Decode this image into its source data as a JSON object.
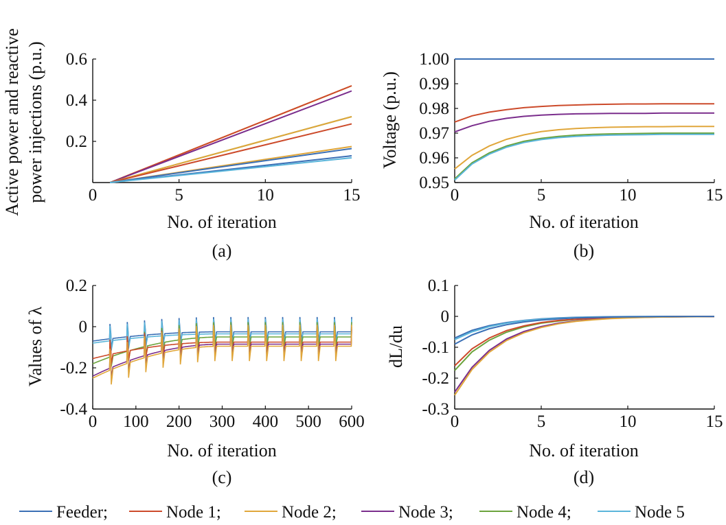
{
  "colors": {
    "feeder": "#3a6fb5",
    "node1": "#cc4a2a",
    "node2": "#e0a63a",
    "node3": "#7a2d8c",
    "node4": "#6ba33c",
    "node5": "#5ab5da"
  },
  "legend": {
    "items": [
      {
        "label": "Feeder;",
        "color": "#3a6fb5"
      },
      {
        "label": "Node 1;",
        "color": "#cc4a2a"
      },
      {
        "label": "Node 2;",
        "color": "#e0a63a"
      },
      {
        "label": "Node 3;",
        "color": "#7a2d8c"
      },
      {
        "label": "Node 4;",
        "color": "#6ba33c"
      },
      {
        "label": "Node 5",
        "color": "#5ab5da"
      }
    ]
  },
  "chart_data": [
    {
      "id": "a",
      "type": "line",
      "caption": "(a)",
      "xlabel": "No. of iteration",
      "ylabel_lines": [
        "Active power and reactive",
        "power injections (p.u.)"
      ],
      "xlim": [
        0,
        15
      ],
      "ylim": [
        0,
        0.6
      ],
      "xticks": [
        0,
        5,
        10,
        15
      ],
      "xtick_labels": [
        "0",
        "5",
        "10",
        "15"
      ],
      "yticks": [
        0.2,
        0.4,
        0.6
      ],
      "ytick_labels": [
        "0.2",
        "0.4",
        "0.6"
      ],
      "x": [
        1,
        15
      ],
      "series": [
        {
          "color": "#e0a63a",
          "values": [
            0,
            0.47
          ]
        },
        {
          "color": "#cc4a2a",
          "values": [
            0,
            0.47
          ]
        },
        {
          "color": "#7a2d8c",
          "values": [
            0,
            0.445
          ]
        },
        {
          "color": "#6ba33c",
          "values": [
            0,
            0.32
          ]
        },
        {
          "color": "#e0a63a",
          "values": [
            0,
            0.32
          ]
        },
        {
          "color": "#cc4a2a",
          "values": [
            0,
            0.285
          ]
        },
        {
          "color": "#e0a63a",
          "values": [
            0,
            0.175
          ]
        },
        {
          "color": "#3a6fb5",
          "values": [
            0,
            0.165
          ]
        },
        {
          "color": "#3a6fb5",
          "values": [
            0,
            0.13
          ]
        },
        {
          "color": "#5ab5da",
          "values": [
            0,
            0.12
          ]
        }
      ]
    },
    {
      "id": "b",
      "type": "line",
      "caption": "(b)",
      "xlabel": "No. of iteration",
      "ylabel_lines": [
        "Voltage (p.u.)"
      ],
      "xlim": [
        0,
        15
      ],
      "ylim": [
        0.95,
        1.0
      ],
      "xticks": [
        0,
        5,
        10,
        15
      ],
      "xtick_labels": [
        "0",
        "5",
        "10",
        "15"
      ],
      "yticks": [
        0.95,
        0.96,
        0.97,
        0.98,
        0.99,
        1.0
      ],
      "ytick_labels": [
        "0.95",
        "0.96",
        "0.97",
        "0.98",
        "0.99",
        "1.00"
      ],
      "x": [
        0,
        1,
        2,
        3,
        4,
        5,
        6,
        7,
        8,
        9,
        10,
        11,
        12,
        13,
        14,
        15
      ],
      "series": [
        {
          "name": "Feeder",
          "color": "#3a6fb5",
          "values": [
            1.0,
            1.0,
            1.0,
            1.0,
            1.0,
            1.0,
            1.0,
            1.0,
            1.0,
            1.0,
            1.0,
            1.0,
            1.0,
            1.0,
            1.0,
            1.0
          ]
        },
        {
          "name": "Node 1",
          "color": "#cc4a2a",
          "values": [
            0.9745,
            0.977,
            0.9785,
            0.9795,
            0.9803,
            0.9808,
            0.9812,
            0.9814,
            0.9816,
            0.9817,
            0.9818,
            0.9818,
            0.9819,
            0.9819,
            0.9819,
            0.9819
          ]
        },
        {
          "name": "Node 3",
          "color": "#7a2d8c",
          "values": [
            0.9705,
            0.973,
            0.9748,
            0.976,
            0.9768,
            0.9773,
            0.9776,
            0.9778,
            0.9779,
            0.978,
            0.978,
            0.978,
            0.9781,
            0.9781,
            0.9781,
            0.9781
          ]
        },
        {
          "name": "Node 2",
          "color": "#e0a63a",
          "values": [
            0.9555,
            0.961,
            0.9648,
            0.9675,
            0.9693,
            0.9706,
            0.9714,
            0.9719,
            0.9722,
            0.9724,
            0.9725,
            0.9726,
            0.9726,
            0.9727,
            0.9727,
            0.9727
          ]
        },
        {
          "name": "Node 4",
          "color": "#6ba33c",
          "values": [
            0.9515,
            0.958,
            0.962,
            0.9648,
            0.9667,
            0.9679,
            0.9687,
            0.9692,
            0.9695,
            0.9697,
            0.9698,
            0.9699,
            0.97,
            0.97,
            0.97,
            0.97
          ]
        },
        {
          "name": "Node 5",
          "color": "#5ab5da",
          "values": [
            0.951,
            0.9575,
            0.9615,
            0.9643,
            0.9662,
            0.9674,
            0.9682,
            0.9687,
            0.969,
            0.9692,
            0.9693,
            0.9694,
            0.9695,
            0.9695,
            0.9695,
            0.9695
          ]
        }
      ]
    },
    {
      "id": "c",
      "type": "line",
      "caption": "(c)",
      "xlabel": "No. of iteration",
      "ylabel_lines": [
        "Values of λ"
      ],
      "xlim": [
        0,
        600
      ],
      "ylim": [
        -0.4,
        0.2
      ],
      "xticks": [
        0,
        100,
        200,
        300,
        400,
        500,
        600
      ],
      "xtick_labels": [
        "0",
        "100",
        "200",
        "300",
        "400",
        "500",
        "600"
      ],
      "yticks": [
        -0.4,
        -0.2,
        0,
        0.2
      ],
      "ytick_labels": [
        "-0.4",
        "-0.2",
        "0",
        "0.2"
      ],
      "spike_period": 40,
      "spike_start": 40,
      "series": [
        {
          "name": "Feeder",
          "color": "#3a6fb5",
          "start": -0.07,
          "end": -0.025
        },
        {
          "name": "Node 5",
          "color": "#5ab5da",
          "start": -0.08,
          "end": -0.035
        },
        {
          "name": "Node 4",
          "color": "#6ba33c",
          "start": -0.18,
          "end": -0.05
        },
        {
          "name": "Node 1",
          "color": "#cc4a2a",
          "start": -0.155,
          "end": -0.075
        },
        {
          "name": "Node 3",
          "color": "#7a2d8c",
          "start": -0.24,
          "end": -0.085
        },
        {
          "name": "Node 2",
          "color": "#e0a63a",
          "start": -0.25,
          "end": -0.095
        }
      ]
    },
    {
      "id": "d",
      "type": "line",
      "caption": "(d)",
      "xlabel": "No. of iteration",
      "ylabel_lines": [
        "dL/du"
      ],
      "xlim": [
        0,
        15
      ],
      "ylim": [
        -0.3,
        0.1
      ],
      "xticks": [
        0,
        5,
        10,
        15
      ],
      "xtick_labels": [
        "0",
        "5",
        "10",
        "15"
      ],
      "yticks": [
        -0.3,
        -0.2,
        -0.1,
        0,
        0.1
      ],
      "ytick_labels": [
        "-0.3",
        "-0.2",
        "-0.1",
        "0",
        "0.1"
      ],
      "x": [
        0,
        1,
        2,
        3,
        4,
        5,
        6,
        7,
        8,
        9,
        10,
        11,
        12,
        13,
        14,
        15
      ],
      "series": [
        {
          "name": "Feeder",
          "color": "#3a6fb5",
          "values": [
            -0.07,
            -0.045,
            -0.03,
            -0.02,
            -0.013,
            -0.008,
            -0.005,
            -0.003,
            -0.002,
            -0.001,
            -0.0007,
            -0.0004,
            -0.0003,
            -0.0002,
            -0.0001,
            0
          ]
        },
        {
          "name": "Node 5",
          "color": "#5ab5da",
          "values": [
            -0.075,
            -0.05,
            -0.033,
            -0.022,
            -0.014,
            -0.009,
            -0.006,
            -0.004,
            -0.0025,
            -0.0015,
            -0.001,
            -0.0006,
            -0.0004,
            -0.0002,
            -0.0001,
            0
          ]
        },
        {
          "name": "Node 4",
          "color": "#6ba33c",
          "values": [
            -0.175,
            -0.115,
            -0.077,
            -0.051,
            -0.034,
            -0.022,
            -0.015,
            -0.01,
            -0.0065,
            -0.0043,
            -0.0028,
            -0.0019,
            -0.0012,
            -0.0008,
            -0.0005,
            -0.0003
          ]
        },
        {
          "name": "Node 1",
          "color": "#cc4a2a",
          "values": [
            -0.16,
            -0.105,
            -0.07,
            -0.046,
            -0.031,
            -0.02,
            -0.013,
            -0.009,
            -0.006,
            -0.004,
            -0.0026,
            -0.0017,
            -0.0011,
            -0.0007,
            -0.0005,
            -0.0003
          ]
        },
        {
          "name": "Node 3",
          "color": "#7a2d8c",
          "values": [
            -0.245,
            -0.165,
            -0.11,
            -0.073,
            -0.049,
            -0.033,
            -0.022,
            -0.015,
            -0.01,
            -0.0065,
            -0.0043,
            -0.0029,
            -0.0019,
            -0.0013,
            -0.0008,
            -0.0005
          ]
        },
        {
          "name": "Node 2",
          "color": "#e0a63a",
          "values": [
            -0.255,
            -0.172,
            -0.116,
            -0.078,
            -0.053,
            -0.036,
            -0.024,
            -0.016,
            -0.011,
            -0.0073,
            -0.0049,
            -0.0033,
            -0.0022,
            -0.0015,
            -0.001,
            -0.0006
          ]
        },
        {
          "name": "Feeder",
          "color": "#3a6fb5",
          "values": [
            -0.09,
            -0.06,
            -0.04,
            -0.027,
            -0.018,
            -0.012,
            -0.008,
            -0.005,
            -0.0035,
            -0.0023,
            -0.0015,
            -0.001,
            -0.0007,
            -0.0004,
            -0.0003,
            -0.0002
          ]
        }
      ]
    }
  ]
}
